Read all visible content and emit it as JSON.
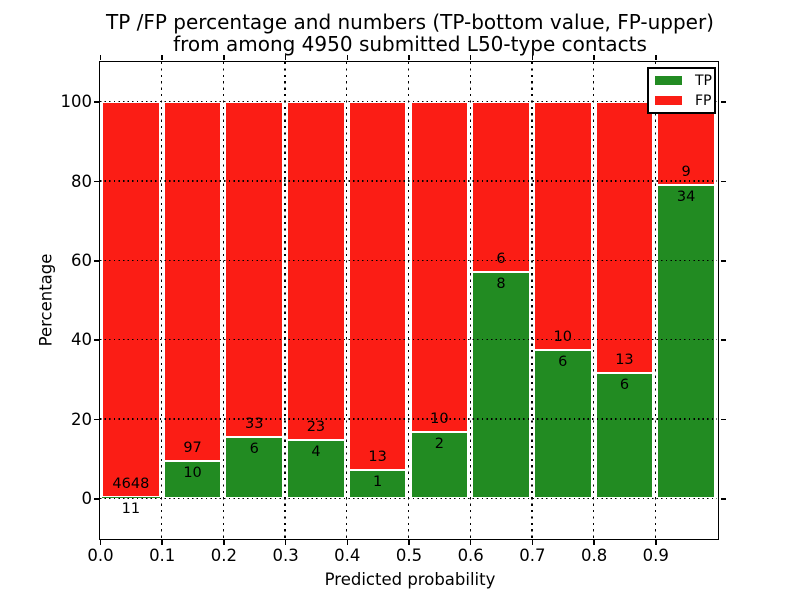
{
  "figure": {
    "title_line1": "TP /FP percentage and numbers (TP-bottom value, FP-upper)",
    "title_line2": "from among 4950 submitted L50-type contacts"
  },
  "chart_data": {
    "type": "bar",
    "stacked": true,
    "orientation": "vertical",
    "title": "TP /FP percentage and numbers (TP-bottom value, FP-upper)\nfrom among 4950 submitted L50-type contacts",
    "xlabel": "Predicted probability",
    "ylabel": "Percentage",
    "total_submitted": 4950,
    "bin_width": 0.1,
    "bin_starts": [
      0.0,
      0.1,
      0.2,
      0.3,
      0.4,
      0.5,
      0.6,
      0.7,
      0.8,
      0.9
    ],
    "categories": [
      "0.0-0.1",
      "0.1-0.2",
      "0.2-0.3",
      "0.3-0.4",
      "0.4-0.5",
      "0.5-0.6",
      "0.6-0.7",
      "0.7-0.8",
      "0.8-0.9",
      "0.9-1.0"
    ],
    "series": [
      {
        "name": "TP",
        "color": "#228b22",
        "position": "bottom",
        "counts": [
          11,
          10,
          6,
          4,
          1,
          2,
          8,
          6,
          6,
          34
        ]
      },
      {
        "name": "FP",
        "color": "#fb1d15",
        "position": "top",
        "counts": [
          4648,
          97,
          33,
          23,
          13,
          10,
          6,
          10,
          13,
          9
        ]
      }
    ],
    "tp_percent": [
      0.24,
      9.35,
      15.38,
      14.81,
      7.14,
      16.67,
      57.14,
      37.5,
      31.58,
      79.07
    ],
    "bar_total_percent": 100,
    "xticks": [
      "0.0",
      "0.1",
      "0.2",
      "0.3",
      "0.4",
      "0.5",
      "0.6",
      "0.7",
      "0.8",
      "0.9"
    ],
    "yticks": [
      "0",
      "20",
      "40",
      "60",
      "80",
      "100"
    ],
    "xlim": [
      0.0,
      1.0
    ],
    "ylim": [
      -10,
      110
    ],
    "grid": true,
    "bar_edge_color": "#ffffff",
    "legend": {
      "position": "upper right",
      "entries": [
        {
          "label": "TP",
          "color": "#228b22"
        },
        {
          "label": "FP",
          "color": "#fb1d15"
        }
      ]
    }
  }
}
